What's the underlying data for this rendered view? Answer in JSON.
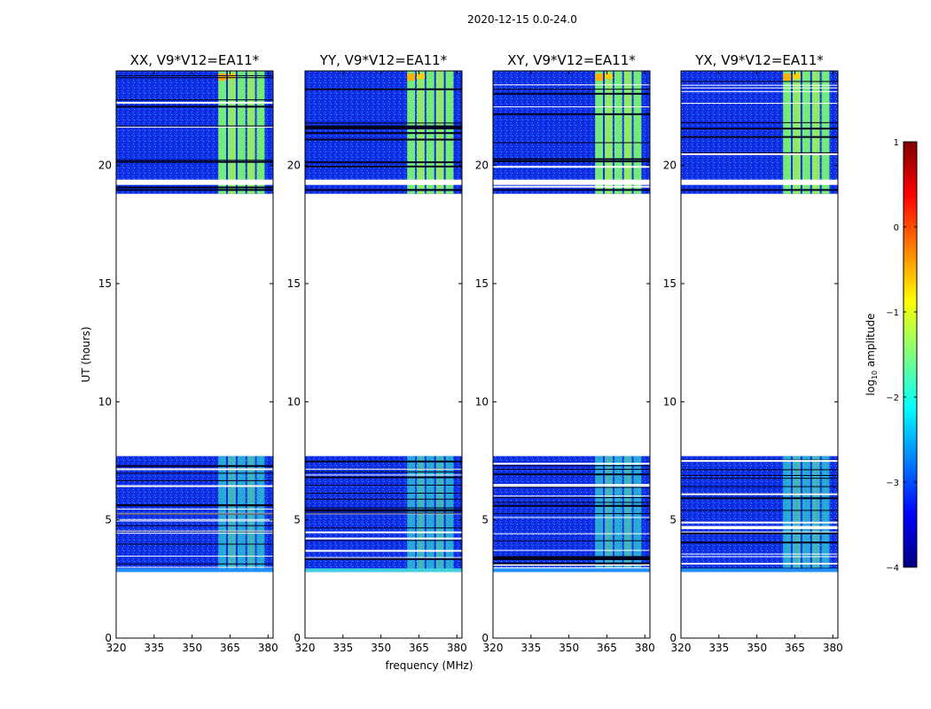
{
  "figure_title": "2020-12-15 0.0-24.0",
  "chart_data": [
    {
      "type": "heatmap",
      "title": "XX, V9*V12=EA11*",
      "xlabel": "",
      "ylabel": "UT (hours)",
      "xlim": [
        320,
        382
      ],
      "ylim": [
        0,
        24
      ],
      "xticks": [
        "320",
        "335",
        "350",
        "365",
        "380"
      ],
      "yticks": [
        "0",
        "5",
        "10",
        "15",
        "20"
      ],
      "data_blocks": [
        {
          "t_start": 2.8,
          "t_end": 7.7,
          "level": "low"
        },
        {
          "t_start": 18.8,
          "t_end": 24.0,
          "level": "high"
        }
      ],
      "bright_band_MHz": [
        360,
        379
      ]
    },
    {
      "type": "heatmap",
      "title": "YY, V9*V12=EA11*",
      "xlabel": "frequency (MHz)",
      "ylabel": "",
      "xlim": [
        320,
        382
      ],
      "ylim": [
        0,
        24
      ],
      "xticks": [
        "320",
        "335",
        "350",
        "365",
        "380"
      ],
      "yticks": [
        "0",
        "5",
        "10",
        "15",
        "20"
      ],
      "data_blocks": [
        {
          "t_start": 2.8,
          "t_end": 7.7,
          "level": "low"
        },
        {
          "t_start": 18.8,
          "t_end": 24.0,
          "level": "high"
        }
      ],
      "bright_band_MHz": [
        360,
        379
      ]
    },
    {
      "type": "heatmap",
      "title": "XY, V9*V12=EA11*",
      "xlabel": "",
      "ylabel": "",
      "xlim": [
        320,
        382
      ],
      "ylim": [
        0,
        24
      ],
      "xticks": [
        "320",
        "335",
        "350",
        "365",
        "380"
      ],
      "yticks": [
        "0",
        "5",
        "10",
        "15",
        "20"
      ],
      "data_blocks": [
        {
          "t_start": 2.8,
          "t_end": 7.7,
          "level": "low"
        },
        {
          "t_start": 18.8,
          "t_end": 24.0,
          "level": "high"
        }
      ],
      "bright_band_MHz": [
        360,
        379
      ]
    },
    {
      "type": "heatmap",
      "title": "YX, V9*V12=EA11*",
      "xlabel": "",
      "ylabel": "",
      "xlim": [
        320,
        382
      ],
      "ylim": [
        0,
        24
      ],
      "xticks": [
        "320",
        "335",
        "350",
        "365",
        "380"
      ],
      "yticks": [
        "0",
        "5",
        "10",
        "15",
        "20"
      ],
      "data_blocks": [
        {
          "t_start": 2.8,
          "t_end": 7.7,
          "level": "low"
        },
        {
          "t_start": 18.8,
          "t_end": 24.0,
          "level": "high"
        }
      ],
      "bright_band_MHz": [
        360,
        379
      ]
    }
  ],
  "colorbar": {
    "label": "log10 amplitude",
    "label_main": "log",
    "label_sub": "10",
    "label_rest": " amplitude",
    "vmin": -4,
    "vmax": 1,
    "ticks": [
      "1",
      "0",
      "−1",
      "−2",
      "−3",
      "−4"
    ],
    "colormap": "jet",
    "colors": [
      "#00007f",
      "#0000ff",
      "#007fff",
      "#00ffff",
      "#7fff7f",
      "#ffff00",
      "#ff7f00",
      "#ff0000",
      "#7f0000"
    ]
  }
}
